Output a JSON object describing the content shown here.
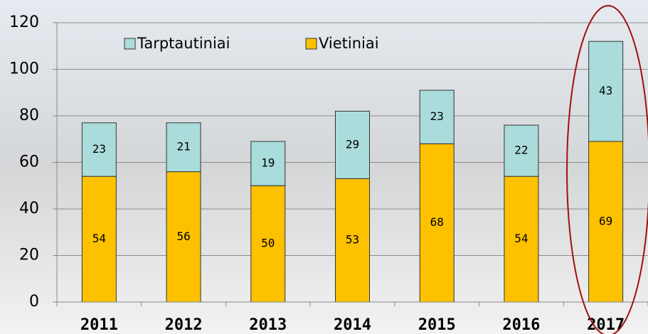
{
  "chart_data": {
    "type": "stacked-bar",
    "categories": [
      "2011",
      "2012",
      "2013",
      "2014",
      "2015",
      "2016",
      "2017"
    ],
    "series": [
      {
        "name": "Vietiniai",
        "color": "#fdc100",
        "values": [
          54,
          56,
          50,
          53,
          68,
          54,
          69
        ]
      },
      {
        "name": "Tarptautiniai",
        "color": "#a9dcda",
        "values": [
          23,
          21,
          19,
          29,
          23,
          22,
          43
        ]
      }
    ],
    "ylim": [
      0,
      120
    ],
    "yticks": [
      0,
      20,
      40,
      60,
      80,
      100,
      120
    ],
    "grid": true
  }
}
